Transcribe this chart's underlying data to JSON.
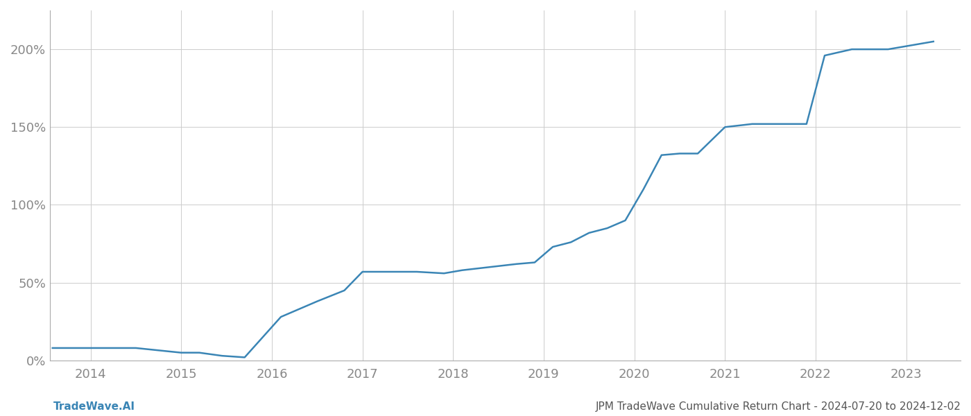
{
  "title": "JPM TradeWave Cumulative Return Chart - 2024-07-20 to 2024-12-02",
  "watermark": "TradeWave.AI",
  "line_color": "#3a85b5",
  "background_color": "#ffffff",
  "grid_color": "#cccccc",
  "x_years": [
    2014,
    2015,
    2016,
    2017,
    2018,
    2019,
    2020,
    2021,
    2022,
    2023
  ],
  "x_data": [
    2013.58,
    2014.0,
    2014.5,
    2015.0,
    2015.2,
    2015.45,
    2015.7,
    2016.1,
    2016.5,
    2016.8,
    2017.0,
    2017.3,
    2017.6,
    2017.9,
    2018.1,
    2018.4,
    2018.7,
    2018.9,
    2019.1,
    2019.3,
    2019.5,
    2019.7,
    2019.9,
    2020.1,
    2020.3,
    2020.5,
    2020.7,
    2021.0,
    2021.3,
    2021.6,
    2021.9,
    2022.1,
    2022.4,
    2022.6,
    2022.8,
    2023.0,
    2023.3
  ],
  "y_data": [
    8,
    8,
    8,
    5,
    5,
    3,
    2,
    28,
    38,
    45,
    57,
    57,
    57,
    56,
    58,
    60,
    62,
    63,
    73,
    76,
    82,
    85,
    90,
    110,
    132,
    133,
    133,
    150,
    152,
    152,
    152,
    196,
    200,
    200,
    200,
    202,
    205
  ],
  "ylim": [
    0,
    225
  ],
  "yticks": [
    0,
    50,
    100,
    150,
    200
  ],
  "ytick_labels": [
    "0%",
    "50%",
    "100%",
    "150%",
    "200%"
  ],
  "xlim": [
    2013.55,
    2023.6
  ],
  "title_fontsize": 11,
  "watermark_fontsize": 11,
  "tick_fontsize": 13,
  "line_width": 1.8
}
